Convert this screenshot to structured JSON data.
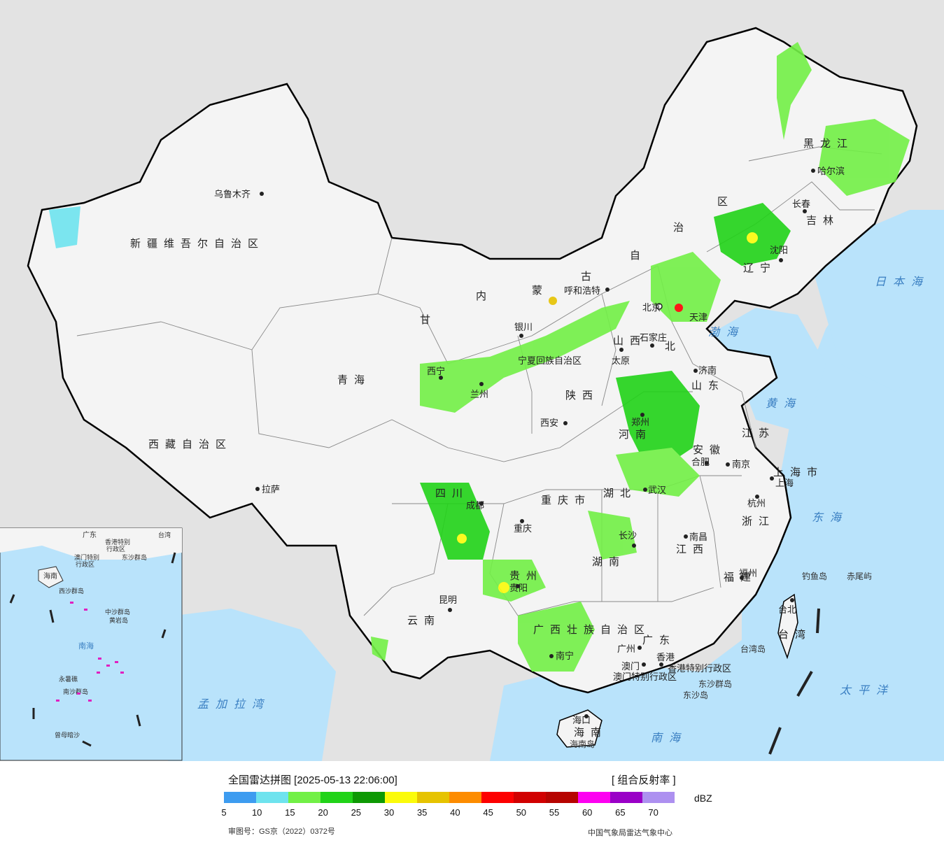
{
  "map": {
    "provinces": [
      {
        "id": "xinjiang",
        "name": "新疆维吾尔自治区"
      },
      {
        "id": "xizang",
        "name": "西藏自治区"
      },
      {
        "id": "qinghai",
        "name": "青海"
      },
      {
        "id": "gansu",
        "name": "甘"
      },
      {
        "id": "neimenggu-1",
        "name": "内"
      },
      {
        "id": "neimenggu-2",
        "name": "蒙"
      },
      {
        "id": "neimenggu-3",
        "name": "古"
      },
      {
        "id": "neimenggu-4",
        "name": "自"
      },
      {
        "id": "neimenggu-5",
        "name": "治"
      },
      {
        "id": "neimenggu-6",
        "name": "区"
      },
      {
        "id": "heilongjiang",
        "name": "黑龙江"
      },
      {
        "id": "jilin",
        "name": "吉林"
      },
      {
        "id": "liaoning",
        "name": "辽宁"
      },
      {
        "id": "hebei",
        "name": "北"
      },
      {
        "id": "shanxi",
        "name": "山西"
      },
      {
        "id": "shandong",
        "name": "山东"
      },
      {
        "id": "henan",
        "name": "河南"
      },
      {
        "id": "shaanxi",
        "name": "陕西"
      },
      {
        "id": "ningxia",
        "name": "宁夏回族自治区"
      },
      {
        "id": "sichuan",
        "name": "四川"
      },
      {
        "id": "chongqing",
        "name": "重庆市"
      },
      {
        "id": "hubei",
        "name": "湖北"
      },
      {
        "id": "anhui",
        "name": "安徽"
      },
      {
        "id": "jiangsu",
        "name": "江苏"
      },
      {
        "id": "shanghai",
        "name": "上海市"
      },
      {
        "id": "zhejiang",
        "name": "浙江"
      },
      {
        "id": "jiangxi",
        "name": "江西"
      },
      {
        "id": "hunan",
        "name": "湖南"
      },
      {
        "id": "guizhou",
        "name": "贵州"
      },
      {
        "id": "yunnan",
        "name": "云南"
      },
      {
        "id": "guangxi",
        "name": "广西壮族自治区"
      },
      {
        "id": "guangdong",
        "name": "广东"
      },
      {
        "id": "fujian",
        "name": "福建"
      },
      {
        "id": "taiwan",
        "name": "台湾"
      },
      {
        "id": "hainan",
        "name": "海南"
      },
      {
        "id": "hongkong",
        "name": "香港特别行政区"
      },
      {
        "id": "macau",
        "name": "澳门特别行政区"
      },
      {
        "id": "tianjin",
        "name": "天津"
      }
    ],
    "cities": [
      {
        "name": "乌鲁木齐"
      },
      {
        "name": "拉萨"
      },
      {
        "name": "西宁"
      },
      {
        "name": "兰州"
      },
      {
        "name": "银川"
      },
      {
        "name": "呼和浩特"
      },
      {
        "name": "北京"
      },
      {
        "name": "天津"
      },
      {
        "name": "石家庄"
      },
      {
        "name": "太原"
      },
      {
        "name": "济南"
      },
      {
        "name": "郑州"
      },
      {
        "name": "西安"
      },
      {
        "name": "成都"
      },
      {
        "name": "重庆"
      },
      {
        "name": "武汉"
      },
      {
        "name": "合肥"
      },
      {
        "name": "南京"
      },
      {
        "name": "上海"
      },
      {
        "name": "杭州"
      },
      {
        "name": "南昌"
      },
      {
        "name": "长沙"
      },
      {
        "name": "贵阳"
      },
      {
        "name": "昆明"
      },
      {
        "name": "南宁"
      },
      {
        "name": "广州"
      },
      {
        "name": "香港"
      },
      {
        "name": "澳门"
      },
      {
        "name": "福州"
      },
      {
        "name": "台北"
      },
      {
        "name": "海口"
      },
      {
        "name": "沈阳"
      },
      {
        "name": "长春"
      },
      {
        "name": "哈尔滨"
      }
    ],
    "seas": [
      {
        "name": "渤海"
      },
      {
        "name": "黄海"
      },
      {
        "name": "东海"
      },
      {
        "name": "南海"
      },
      {
        "name": "日本海"
      },
      {
        "name": "太平洋"
      },
      {
        "name": "孟加拉湾"
      }
    ],
    "islands": [
      {
        "name": "钓鱼岛"
      },
      {
        "name": "赤尾屿"
      },
      {
        "name": "台湾岛"
      },
      {
        "name": "东沙群岛"
      },
      {
        "name": "东沙岛"
      },
      {
        "name": "海南岛"
      }
    ],
    "inset": {
      "labels": [
        "海南",
        "广东",
        "香港特别",
        "行政区",
        "澳门特别",
        "行政区",
        "东沙群岛",
        "西沙群岛",
        "中沙群岛",
        "黄岩岛",
        "南海",
        "南沙群岛",
        "台湾",
        "曾母暗沙",
        "永暑礁"
      ]
    }
  },
  "legend": {
    "title": "全国雷达拼图 [2025-05-13 22:06:00]",
    "product": "[ 组合反射率 ]",
    "unit": "dBZ",
    "colors": [
      "#3d9cf0",
      "#6ee3ee",
      "#72f046",
      "#21d318",
      "#0e9904",
      "#fbfb0a",
      "#e6c300",
      "#fd8c00",
      "#fd0000",
      "#d10000",
      "#b60400",
      "#fd00f1",
      "#9a00c7",
      "#ad90f0"
    ],
    "ticks": [
      "5",
      "10",
      "15",
      "20",
      "25",
      "30",
      "35",
      "40",
      "45",
      "50",
      "55",
      "60",
      "65",
      "70"
    ],
    "approval": "审图号：GS京（2022）0372号",
    "source": "中国气象局雷达气象中心"
  }
}
